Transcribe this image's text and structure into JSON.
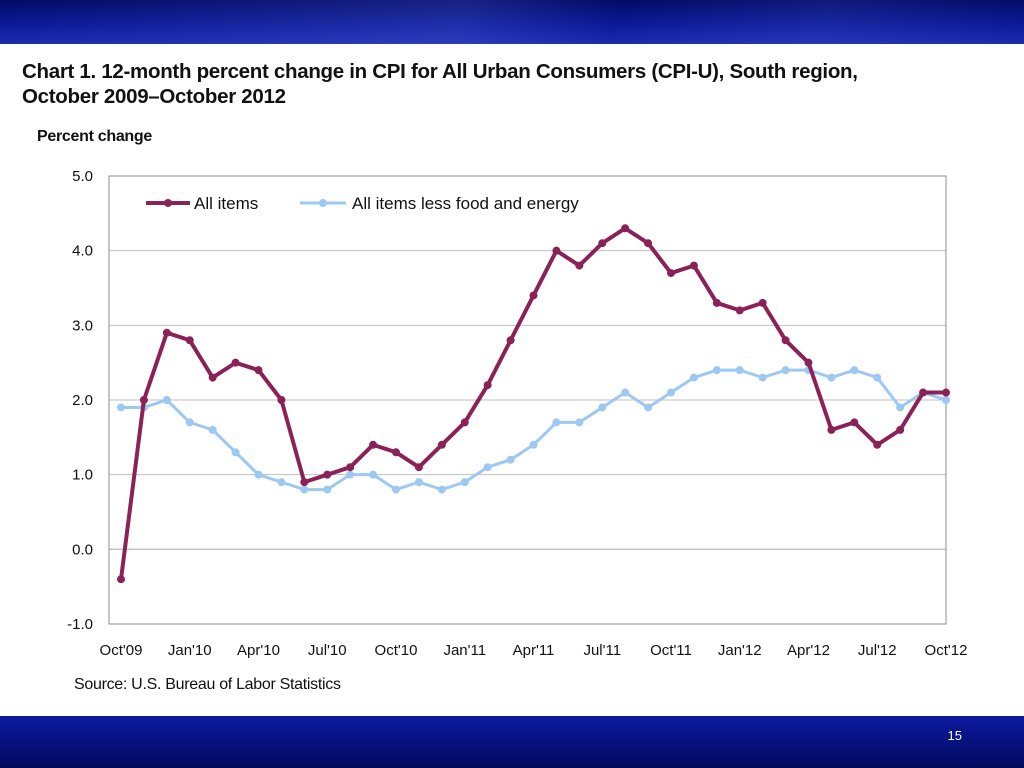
{
  "slide": {
    "number": "15"
  },
  "colors": {
    "top_band": "#0a1a95",
    "bottom_band": "#061078",
    "all_items": "#8b2257",
    "less_food_energy": "#9cc8f2",
    "grid": "#bfbfbf"
  },
  "chart_data": {
    "type": "line",
    "title": "Chart 1. 12-month percent change in CPI for All Urban Consumers (CPI-U),  South region,\nOctober 2009–October  2012",
    "ylabel": "Percent change",
    "xlabel": "",
    "ylim": [
      -1.0,
      5.0
    ],
    "yticks": [
      "5.0",
      "4.0",
      "3.0",
      "2.0",
      "1.0",
      "0.0",
      "-1.0"
    ],
    "ytick_values": [
      5,
      4,
      3,
      2,
      1,
      0,
      -1
    ],
    "xtick_labels": [
      "Oct'09",
      "Jan'10",
      "Apr'10",
      "Jul'10",
      "Oct'10",
      "Jan'11",
      "Apr'11",
      "Jul'11",
      "Oct'11",
      "Jan'12",
      "Apr'12",
      "Jul'12",
      "Oct'12"
    ],
    "grid": true,
    "legend_position": "top-left",
    "x": [
      "Oct'09",
      "Nov'09",
      "Dec'09",
      "Jan'10",
      "Feb'10",
      "Mar'10",
      "Apr'10",
      "May'10",
      "Jun'10",
      "Jul'10",
      "Aug'10",
      "Sep'10",
      "Oct'10",
      "Nov'10",
      "Dec'10",
      "Jan'11",
      "Feb'11",
      "Mar'11",
      "Apr'11",
      "May'11",
      "Jun'11",
      "Jul'11",
      "Aug'11",
      "Sep'11",
      "Oct'11",
      "Nov'11",
      "Dec'11",
      "Jan'12",
      "Feb'12",
      "Mar'12",
      "Apr'12",
      "May'12",
      "Jun'12",
      "Jul'12",
      "Aug'12",
      "Sep'12",
      "Oct'12"
    ],
    "series": [
      {
        "name": "All items",
        "values": [
          -0.4,
          2.0,
          2.9,
          2.8,
          2.3,
          2.5,
          2.4,
          2.0,
          0.9,
          1.0,
          1.1,
          1.4,
          1.3,
          1.1,
          1.4,
          1.7,
          2.2,
          2.8,
          3.4,
          4.0,
          3.8,
          4.1,
          4.3,
          4.1,
          3.7,
          3.8,
          3.3,
          3.2,
          3.3,
          2.8,
          2.5,
          1.6,
          1.7,
          1.4,
          1.6,
          2.1,
          2.1
        ]
      },
      {
        "name": "All items less food and energy",
        "values": [
          1.9,
          1.9,
          2.0,
          1.7,
          1.6,
          1.3,
          1.0,
          0.9,
          0.8,
          0.8,
          1.0,
          1.0,
          0.8,
          0.9,
          0.8,
          0.9,
          1.1,
          1.2,
          1.4,
          1.7,
          1.7,
          1.9,
          2.1,
          1.9,
          2.1,
          2.3,
          2.4,
          2.4,
          2.3,
          2.4,
          2.4,
          2.3,
          2.4,
          2.3,
          1.9,
          2.1,
          2.0
        ]
      }
    ],
    "source": "Source: U.S. Bureau of Labor Statistics"
  }
}
